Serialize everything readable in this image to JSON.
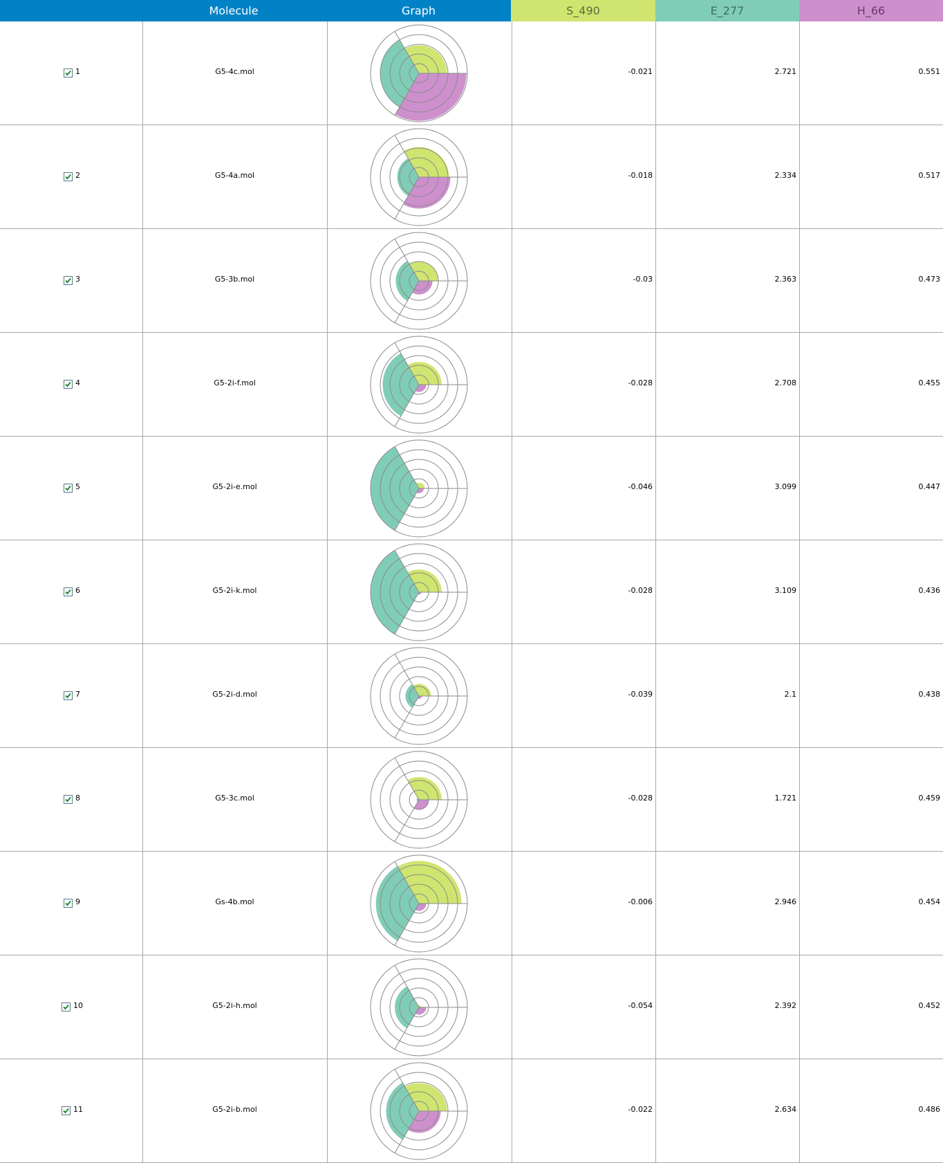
{
  "header": {
    "columns": [
      {
        "label": "",
        "key": "index"
      },
      {
        "label": "Molecule",
        "key": "molecule"
      },
      {
        "label": "Graph",
        "key": "graph"
      },
      {
        "label": "S_490",
        "key": "s"
      },
      {
        "label": "E_277",
        "key": "e"
      },
      {
        "label": "H_66",
        "key": "h"
      }
    ]
  },
  "colors": {
    "header_blue": "#0282c6",
    "s": "#cfe570",
    "e": "#80cdb7",
    "h": "#cd90cd",
    "grid": "#a7a7a7"
  },
  "rows": [
    {
      "index": "1",
      "checked": true,
      "molecule": "G5-4c.mol",
      "s": "-0.021",
      "e": "2.721",
      "h": "0.551",
      "rs": 0.58,
      "re": 0.8,
      "rh": 0.98
    },
    {
      "index": "2",
      "checked": true,
      "molecule": "G5-4a.mol",
      "s": "-0.018",
      "e": "2.334",
      "h": "0.517",
      "rs": 0.62,
      "re": 0.45,
      "rh": 0.65
    },
    {
      "index": "3",
      "checked": true,
      "molecule": "G5-3b.mol",
      "s": "-0.03",
      "e": "2.363",
      "h": "0.473",
      "rs": 0.4,
      "re": 0.48,
      "rh": 0.28
    },
    {
      "index": "4",
      "checked": true,
      "molecule": "G5-2i-f.mol",
      "s": "-0.028",
      "e": "2.708",
      "h": "0.455",
      "rs": 0.47,
      "re": 0.75,
      "rh": 0.15
    },
    {
      "index": "5",
      "checked": true,
      "molecule": "G5-2i-e.mol",
      "s": "-0.046",
      "e": "3.099",
      "h": "0.447",
      "rs": 0.12,
      "re": 1.0,
      "rh": 0.1
    },
    {
      "index": "6",
      "checked": true,
      "molecule": "G5-2i-k.mol",
      "s": "-0.028",
      "e": "3.109",
      "h": "0.436",
      "rs": 0.47,
      "re": 1.0,
      "rh": 0.05
    },
    {
      "index": "7",
      "checked": true,
      "molecule": "G5-2i-d.mol",
      "s": "-0.039",
      "e": "2.1",
      "h": "0.438",
      "rs": 0.25,
      "re": 0.28,
      "rh": 0.06
    },
    {
      "index": "8",
      "checked": true,
      "molecule": "G5-3c.mol",
      "s": "-0.028",
      "e": "1.721",
      "h": "0.459",
      "rs": 0.47,
      "re": 0.05,
      "rh": 0.2
    },
    {
      "index": "9",
      "checked": true,
      "molecule": "Gs-4b.mol",
      "s": "-0.006",
      "e": "2.946",
      "h": "0.454",
      "rs": 0.88,
      "re": 0.89,
      "rh": 0.15
    },
    {
      "index": "10",
      "checked": true,
      "molecule": "G5-2i-h.mol",
      "s": "-0.054",
      "e": "2.392",
      "h": "0.452",
      "rs": 0.05,
      "re": 0.5,
      "rh": 0.15
    },
    {
      "index": "11",
      "checked": true,
      "molecule": "G5-2i-b.mol",
      "s": "-0.022",
      "e": "2.634",
      "h": "0.486",
      "rs": 0.58,
      "re": 0.68,
      "rh": 0.45
    }
  ]
}
